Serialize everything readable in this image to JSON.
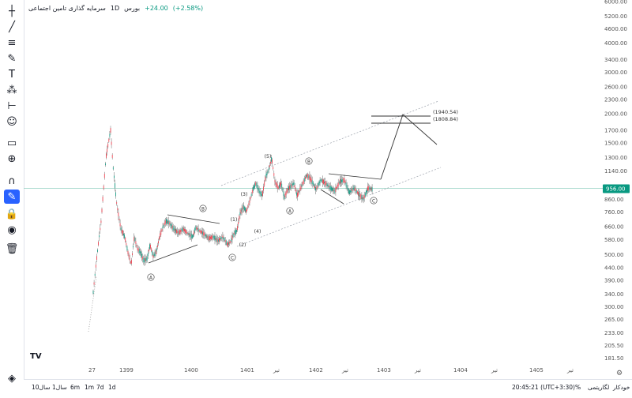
{
  "header": {
    "symbol": "سرمایه گذاری تامین اجتماعی",
    "interval": "1D",
    "exchange": "بورس",
    "change": "+24.00",
    "change_pct": "(+2.58%)"
  },
  "toolbar": {
    "icons": [
      "crosshair-icon",
      "trend-line-icon",
      "fib-icon",
      "brush-icon",
      "text-icon",
      "pattern-icon",
      "measure-icon",
      "emoji-icon",
      "ruler-icon",
      "zoom-in-icon",
      "magnet-icon",
      "lock-drawing-icon",
      "lock-icon",
      "eye-icon",
      "trash-icon"
    ]
  },
  "chart_data": {
    "type": "line",
    "x_ticks": [
      "27",
      "1399",
      "1400",
      "1401",
      "تیر",
      "1402",
      "تیر",
      "1403",
      "تیر",
      "1404",
      "تیر",
      "1405",
      "تیر"
    ],
    "y_ticks": [
      "6000.00",
      "5200.00",
      "4600.00",
      "4000.00",
      "3400.00",
      "3000.00",
      "2600.00",
      "2300.00",
      "2000.00",
      "1700.00",
      "1500.00",
      "1300.00",
      "1140.00",
      "980.00",
      "860.00",
      "760.00",
      "660.00",
      "580.00",
      "500.00",
      "440.00",
      "390.00",
      "340.00",
      "300.00",
      "265.00",
      "233.00",
      "205.50",
      "181.50"
    ],
    "y_scale": "log",
    "last_price": "956.00",
    "price_labels": [
      "(1940.54)",
      "(1808.84)"
    ],
    "wave_labels": [
      "A",
      "B",
      "C",
      "(1)",
      "(2)",
      "(3)",
      "(4)",
      "(5)",
      "A",
      "B",
      "C"
    ],
    "watermark": "TV"
  },
  "bottombar": {
    "ranges": [
      "10سال",
      "1سال",
      "6m",
      "1m",
      "7d",
      "1d"
    ],
    "time": "20:45:21 (UTC+3:30)",
    "percent": "%",
    "scale_modes": [
      "لگاریتمی",
      "خودکار"
    ]
  }
}
